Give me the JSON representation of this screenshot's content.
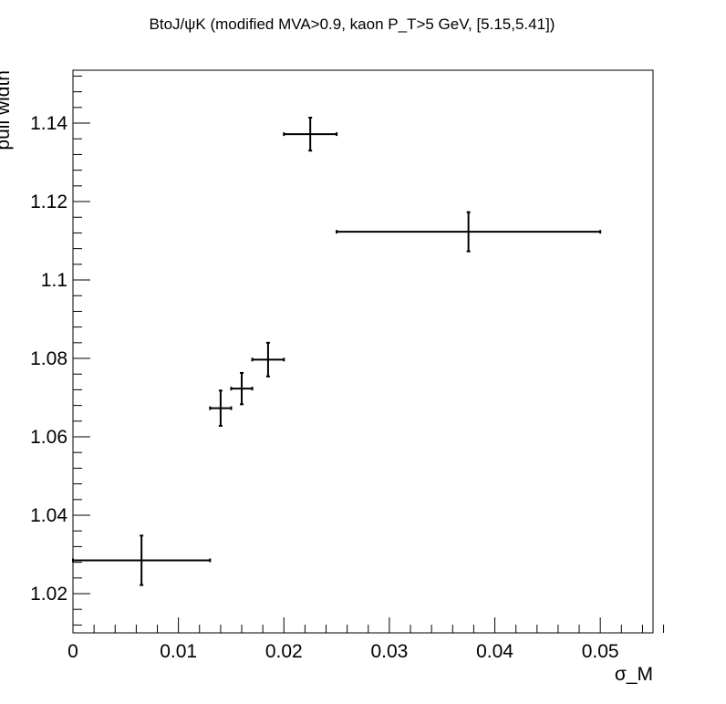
{
  "chart_data": {
    "type": "scatter",
    "title": "BtoJ/ψK (modified MVA>0.9, kaon P_T>5 GeV, [5.15,5.41])",
    "xlabel": "σ_M",
    "ylabel": "pull width",
    "xlim": [
      0,
      0.055
    ],
    "ylim": [
      1.01,
      1.1535
    ],
    "x_ticks": [
      0,
      0.01,
      0.02,
      0.03,
      0.04,
      0.05
    ],
    "x_tick_labels": [
      "0",
      "0.01",
      "0.02",
      "0.03",
      "0.04",
      "0.05"
    ],
    "y_ticks": [
      1.02,
      1.04,
      1.06,
      1.08,
      1.1,
      1.12,
      1.14
    ],
    "y_tick_labels": [
      "1.02",
      "1.04",
      "1.06",
      "1.08",
      "1.1",
      "1.12",
      "1.14"
    ],
    "grid": false,
    "legend": "none",
    "points": [
      {
        "x": 0.0065,
        "y": 1.0285,
        "x_lo": 0.0,
        "x_hi": 0.013,
        "y_err": 0.0063
      },
      {
        "x": 0.014,
        "y": 1.0673,
        "x_lo": 0.013,
        "x_hi": 0.015,
        "y_err": 0.0045
      },
      {
        "x": 0.016,
        "y": 1.0723,
        "x_lo": 0.015,
        "x_hi": 0.017,
        "y_err": 0.004
      },
      {
        "x": 0.0185,
        "y": 1.0797,
        "x_lo": 0.017,
        "x_hi": 0.02,
        "y_err": 0.0043
      },
      {
        "x": 0.0225,
        "y": 1.1372,
        "x_lo": 0.02,
        "x_hi": 0.025,
        "y_err": 0.0042
      },
      {
        "x": 0.0375,
        "y": 1.1123,
        "x_lo": 0.025,
        "x_hi": 0.05,
        "y_err": 0.005
      }
    ]
  }
}
